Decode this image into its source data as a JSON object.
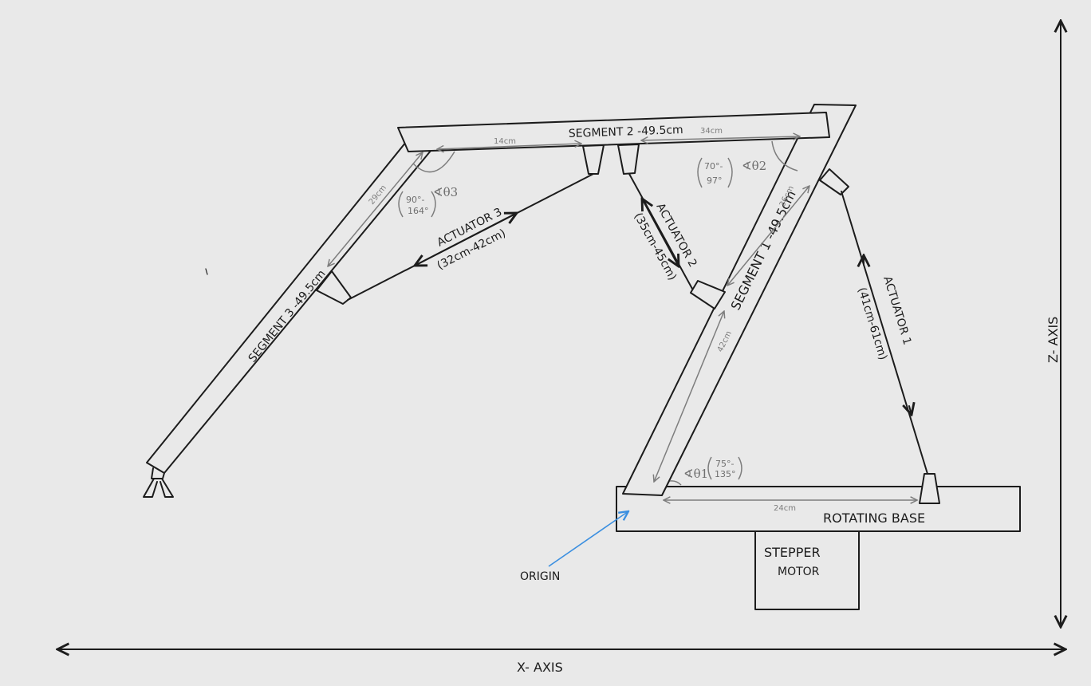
{
  "axes": {
    "x_label": "X- AXIS",
    "z_label": "Z- AXIS"
  },
  "segments": {
    "seg1": "SEGMENT 1 -49.5cm",
    "seg2": "SEGMENT 2 -49.5cm",
    "seg3": "SEGMENT 3 -49.5cm"
  },
  "actuators": {
    "a1_name": "ACTUATOR 1",
    "a1_range": "(41cm-61cm)",
    "a2_name": "ACTUATOR 2",
    "a2_range": "(35cm-45cm)",
    "a3_name": "ACTUATOR 3",
    "a3_range": "(32cm-42cm)"
  },
  "dimensions": {
    "d_14": "14cm",
    "d_34": "34cm",
    "d_29": "29cm",
    "d_36": "36cm",
    "d_42": "42cm",
    "d_24": "24cm"
  },
  "angles": {
    "theta1": "∢θ1",
    "theta1_min": "75°-",
    "theta1_max": "135°",
    "theta2": "∢θ2",
    "theta2_min": "70°-",
    "theta2_max": "97°",
    "theta3": "∢θ3",
    "theta3_min": "90°-",
    "theta3_max": "164°"
  },
  "base": {
    "rotating_base": "ROTATING BASE",
    "stepper_line1": "STEPPER",
    "stepper_line2": "MOTOR"
  },
  "origin_label": "ORIGIN",
  "colors": {
    "background": "#e9e9e9",
    "ink": "#1c1c1c",
    "dimension": "#7d7d7d",
    "origin_arrow": "#3b8fe0"
  }
}
